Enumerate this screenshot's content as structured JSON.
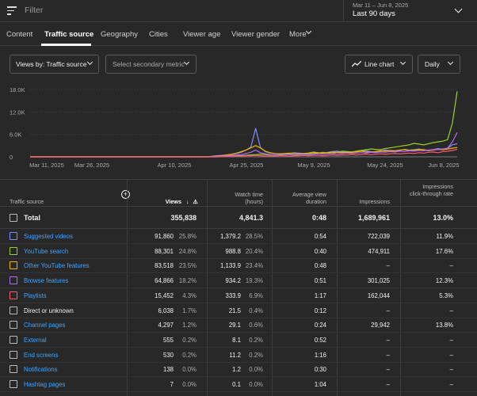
{
  "filter": {
    "placeholder": "Filter"
  },
  "date_range": {
    "range": "Mar 11 – Jun 8, 2025",
    "label": "Last 90 days"
  },
  "tabs": [
    {
      "label": "Content"
    },
    {
      "label": "Traffic source"
    },
    {
      "label": "Geography"
    },
    {
      "label": "Cities"
    },
    {
      "label": "Viewer age"
    },
    {
      "label": "Viewer gender"
    },
    {
      "label": "More"
    }
  ],
  "toolbar": {
    "views_by": "Views by: Traffic source",
    "secondary_metric": "Select secondary metric",
    "chart_type": "Line chart",
    "granularity": "Daily"
  },
  "chart_data": {
    "type": "line",
    "y_ticks": [
      "18.0K",
      "12.0K",
      "6.0K",
      "0"
    ],
    "ylim": [
      0,
      18000
    ],
    "x_ticks": [
      "Mar 11, 2025",
      "Mar 26, 2025",
      "Apr 10, 2025",
      "Apr 25, 2025",
      "May 9, 2025",
      "May 24, 2025",
      "Jun 8, 2025"
    ],
    "series": [
      {
        "color": "#7b8cff",
        "values": [
          0,
          0,
          0,
          0,
          0,
          0,
          0,
          0,
          0,
          0,
          0,
          0,
          0,
          0,
          0,
          0,
          0,
          0,
          0,
          0,
          0,
          0,
          0,
          0,
          0,
          0,
          0,
          0,
          0,
          0,
          0,
          0,
          0,
          0,
          0,
          0,
          0,
          0,
          200,
          300,
          400,
          500,
          700,
          900,
          1200,
          1800,
          2600,
          7600,
          2500,
          1400,
          1000,
          900,
          800,
          800,
          900,
          1100,
          1000,
          900,
          1000,
          1300,
          1100,
          1000,
          1200,
          1400,
          1500,
          1300,
          1200,
          1100,
          1500,
          1700,
          1600,
          1400,
          1300,
          1500,
          1800,
          1600,
          1500,
          1700,
          2000,
          1800,
          1900,
          2100,
          1800,
          1600,
          1900,
          2200,
          2000,
          2300,
          3200,
          3500
        ]
      },
      {
        "color": "#9ad02b",
        "values": [
          0,
          0,
          0,
          0,
          0,
          0,
          0,
          0,
          0,
          0,
          0,
          0,
          0,
          0,
          0,
          0,
          0,
          0,
          0,
          0,
          0,
          0,
          0,
          0,
          0,
          0,
          0,
          0,
          0,
          0,
          0,
          0,
          0,
          0,
          0,
          0,
          0,
          0,
          0,
          0,
          100,
          200,
          200,
          300,
          300,
          400,
          500,
          600,
          700,
          600,
          500,
          500,
          600,
          700,
          800,
          900,
          800,
          700,
          800,
          900,
          1000,
          1200,
          1100,
          1000,
          1200,
          1500,
          1400,
          1300,
          1500,
          1700,
          1900,
          2100,
          2000,
          1900,
          2200,
          2400,
          2600,
          2800,
          3000,
          3200,
          3600,
          3400,
          3200,
          3500,
          3800,
          4000,
          4200,
          4600,
          9000,
          17500
        ]
      },
      {
        "color": "#f0b400",
        "values": [
          0,
          0,
          0,
          0,
          0,
          0,
          0,
          0,
          0,
          0,
          0,
          0,
          0,
          0,
          0,
          0,
          0,
          0,
          0,
          0,
          0,
          0,
          0,
          0,
          0,
          0,
          0,
          0,
          0,
          0,
          0,
          0,
          0,
          0,
          0,
          0,
          0,
          0,
          100,
          200,
          300,
          500,
          700,
          1000,
          1400,
          1800,
          2400,
          3000,
          2400,
          1500,
          1100,
          900,
          800,
          900,
          1000,
          900,
          800,
          900,
          1000,
          1200,
          1100,
          1000,
          1100,
          1300,
          1200,
          1100,
          1100,
          1200,
          1300,
          1500,
          1300,
          1200,
          1400,
          1600,
          1500,
          1700,
          1600,
          1800,
          1900,
          1700,
          1800,
          2000,
          1900,
          1700,
          1800,
          2000,
          1900,
          2100,
          2300,
          2500
        ]
      },
      {
        "color": "#b46cf0",
        "values": [
          0,
          0,
          0,
          0,
          0,
          0,
          0,
          0,
          0,
          0,
          0,
          0,
          0,
          0,
          0,
          0,
          0,
          0,
          0,
          0,
          0,
          0,
          0,
          0,
          0,
          0,
          0,
          0,
          0,
          0,
          0,
          0,
          0,
          0,
          0,
          0,
          0,
          0,
          100,
          100,
          200,
          300,
          400,
          500,
          600,
          900,
          1200,
          1800,
          1100,
          800,
          600,
          500,
          500,
          600,
          600,
          500,
          600,
          700,
          600,
          700,
          800,
          700,
          800,
          900,
          800,
          900,
          1000,
          900,
          1000,
          1100,
          1000,
          1200,
          1100,
          1300,
          1200,
          1400,
          1300,
          1500,
          1400,
          1600,
          1500,
          1700,
          1600,
          1800,
          1900,
          2000,
          2100,
          2300,
          4000,
          6500
        ]
      },
      {
        "color": "#ff5a6e",
        "values": [
          0,
          0,
          0,
          0,
          0,
          0,
          0,
          0,
          0,
          0,
          0,
          0,
          0,
          0,
          0,
          0,
          0,
          0,
          0,
          0,
          0,
          0,
          0,
          0,
          0,
          0,
          0,
          0,
          0,
          0,
          0,
          0,
          0,
          0,
          0,
          0,
          0,
          0,
          0,
          0,
          50,
          100,
          100,
          200,
          200,
          300,
          300,
          400,
          300,
          200,
          200,
          200,
          300,
          300,
          200,
          300,
          300,
          400,
          300,
          400,
          400,
          300,
          400,
          500,
          400,
          500,
          500,
          600,
          500,
          600,
          700,
          600,
          700,
          800,
          700,
          800,
          900,
          800,
          900,
          1000,
          900,
          1100,
          1000,
          1200,
          1300,
          1100,
          1400,
          1500,
          1700,
          2000
        ]
      }
    ]
  },
  "table": {
    "columns": {
      "source": "Traffic source",
      "views": "Views",
      "watch_time": "Watch time (hours)",
      "avd": "Average view duration",
      "impressions": "Impressions",
      "ctr": "Impressions click-through rate"
    },
    "total": {
      "name": "Total",
      "views": "355,838",
      "watch": "4,841.3",
      "avd": "0:48",
      "impressions": "1,689,961",
      "ctr": "13.0%"
    },
    "rows": [
      {
        "name": "Suggested videos",
        "color": "#7b8cff",
        "link": true,
        "views": "91,860",
        "views_pct": "25.8%",
        "watch": "1,379.2",
        "watch_pct": "28.5%",
        "avd": "0:54",
        "impressions": "722,039",
        "ctr": "11.9%"
      },
      {
        "name": "YouTube search",
        "color": "#9ad02b",
        "link": true,
        "views": "88,301",
        "views_pct": "24.8%",
        "watch": "988.8",
        "watch_pct": "20.4%",
        "avd": "0:40",
        "impressions": "474,911",
        "ctr": "17.6%"
      },
      {
        "name": "Other YouTube features",
        "color": "#f0b400",
        "link": true,
        "views": "83,518",
        "views_pct": "23.5%",
        "watch": "1,133.9",
        "watch_pct": "23.4%",
        "avd": "0:48",
        "impressions": "–",
        "ctr": "–"
      },
      {
        "name": "Browse features",
        "color": "#b46cf0",
        "link": true,
        "views": "64,866",
        "views_pct": "18.2%",
        "watch": "934.2",
        "watch_pct": "19.3%",
        "avd": "0:51",
        "impressions": "301,025",
        "ctr": "12.3%"
      },
      {
        "name": "Playlists",
        "color": "#ff5a6e",
        "link": true,
        "views": "15,452",
        "views_pct": "4.3%",
        "watch": "333.9",
        "watch_pct": "6.9%",
        "avd": "1:17",
        "impressions": "162,044",
        "ctr": "5.3%"
      },
      {
        "name": "Direct or unknown",
        "color": "#bbbbbb",
        "link": false,
        "views": "6,038",
        "views_pct": "1.7%",
        "watch": "21.5",
        "watch_pct": "0.4%",
        "avd": "0:12",
        "impressions": "–",
        "ctr": "–"
      },
      {
        "name": "Channel pages",
        "color": "#bbbbbb",
        "link": true,
        "views": "4,297",
        "views_pct": "1.2%",
        "watch": "29.1",
        "watch_pct": "0.6%",
        "avd": "0:24",
        "impressions": "29,942",
        "ctr": "13.8%"
      },
      {
        "name": "External",
        "color": "#bbbbbb",
        "link": true,
        "views": "555",
        "views_pct": "0.2%",
        "watch": "8.1",
        "watch_pct": "0.2%",
        "avd": "0:52",
        "impressions": "–",
        "ctr": "–"
      },
      {
        "name": "End screens",
        "color": "#bbbbbb",
        "link": true,
        "views": "530",
        "views_pct": "0.2%",
        "watch": "11.2",
        "watch_pct": "0.2%",
        "avd": "1:16",
        "impressions": "–",
        "ctr": "–"
      },
      {
        "name": "Notifications",
        "color": "#bbbbbb",
        "link": true,
        "views": "138",
        "views_pct": "0.0%",
        "watch": "1.2",
        "watch_pct": "0.0%",
        "avd": "0:30",
        "impressions": "–",
        "ctr": "–"
      },
      {
        "name": "Hashtag pages",
        "color": "#bbbbbb",
        "link": true,
        "views": "7",
        "views_pct": "0.0%",
        "watch": "0.1",
        "watch_pct": "0.0%",
        "avd": "1:04",
        "impressions": "–",
        "ctr": "–"
      }
    ]
  }
}
